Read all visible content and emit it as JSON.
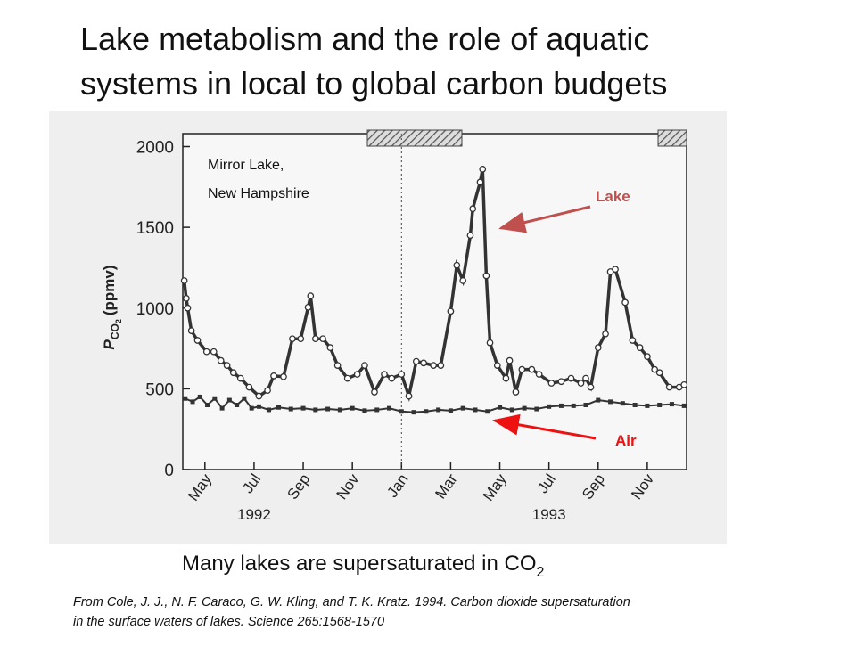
{
  "title_lines": [
    "Lake metabolism and the role of aquatic",
    "systems in local to global carbon budgets"
  ],
  "chart_data": {
    "type": "line",
    "annotation_lines": [
      "Mirror Lake,",
      "New Hampshire"
    ],
    "y_label": {
      "main": "P",
      "sub": "CO",
      "sub2": "2",
      "unit": "(ppmv)"
    },
    "year_labels": [
      {
        "value": 6,
        "label": "1992"
      },
      {
        "value": 18,
        "label": "1993"
      }
    ],
    "xlim": [
      3.1,
      23.6
    ],
    "xticks": [
      {
        "value": 4,
        "label": "May"
      },
      {
        "value": 6,
        "label": "Jul"
      },
      {
        "value": 8,
        "label": "Sep"
      },
      {
        "value": 10,
        "label": "Nov"
      },
      {
        "value": 12,
        "label": "Jan"
      },
      {
        "value": 14,
        "label": "Mar"
      },
      {
        "value": 16,
        "label": "May"
      },
      {
        "value": 18,
        "label": "Jul"
      },
      {
        "value": 20,
        "label": "Sep"
      },
      {
        "value": 22,
        "label": "Nov"
      }
    ],
    "ylim": [
      0,
      2080
    ],
    "yticks": [
      0,
      500,
      1000,
      1500,
      2000
    ],
    "series": [
      {
        "name": "Lake",
        "color": "#333333",
        "label_color": "#c0504d",
        "marker": "circle",
        "x": [
          3.16,
          3.24,
          3.3,
          3.45,
          3.7,
          4.07,
          4.36,
          4.65,
          4.9,
          5.16,
          5.45,
          5.8,
          6.2,
          6.55,
          6.8,
          7.2,
          7.56,
          7.9,
          8.2,
          8.3,
          8.5,
          8.8,
          9.1,
          9.4,
          9.8,
          10.2,
          10.5,
          10.9,
          11.3,
          11.6,
          12,
          12.3,
          12.6,
          12.9,
          13.3,
          13.6,
          14,
          14.25,
          14.5,
          14.8,
          14.9,
          15.2,
          15.3,
          15.45,
          15.6,
          15.9,
          16.25,
          16.4,
          16.65,
          16.9,
          17.3,
          17.6,
          18.1,
          18.5,
          18.9,
          19.3,
          19.5,
          19.7,
          20,
          20.3,
          20.5,
          20.7,
          21.1,
          21.4,
          21.7,
          22,
          22.3,
          22.5,
          22.9,
          23.3,
          23.5
        ],
        "values": [
          1170,
          1060,
          1000,
          860,
          800,
          730,
          730,
          675,
          645,
          600,
          565,
          510,
          455,
          490,
          580,
          575,
          810,
          810,
          1005,
          1075,
          810,
          810,
          755,
          645,
          565,
          590,
          645,
          480,
          590,
          565,
          590,
          455,
          670,
          660,
          645,
          645,
          980,
          1265,
          1170,
          1450,
          1615,
          1780,
          1860,
          1200,
          785,
          645,
          565,
          675,
          480,
          620,
          620,
          590,
          535,
          545,
          565,
          535,
          565,
          510,
          755,
          840,
          1225,
          1240,
          1035,
          800,
          755,
          700,
          620,
          600,
          510,
          510,
          525
        ]
      },
      {
        "name": "Air",
        "color": "#333333",
        "label_color": "#ee1111",
        "marker": "square",
        "x": [
          3.2,
          3.5,
          3.8,
          4.1,
          4.4,
          4.7,
          5,
          5.3,
          5.6,
          5.9,
          6.2,
          6.6,
          7,
          7.5,
          8,
          8.5,
          9,
          9.5,
          10,
          10.5,
          11,
          11.5,
          12,
          12.5,
          13,
          13.5,
          14,
          14.5,
          15,
          15.5,
          16,
          16.5,
          17,
          17.5,
          18,
          18.5,
          19,
          19.5,
          20,
          20.5,
          21,
          21.5,
          22,
          22.5,
          23,
          23.5
        ],
        "values": [
          440,
          420,
          450,
          400,
          440,
          380,
          430,
          400,
          440,
          380,
          390,
          370,
          385,
          375,
          380,
          370,
          375,
          370,
          380,
          365,
          370,
          380,
          360,
          355,
          360,
          370,
          365,
          380,
          370,
          360,
          385,
          370,
          380,
          375,
          390,
          395,
          395,
          400,
          430,
          420,
          410,
          400,
          395,
          400,
          405,
          395
        ]
      }
    ]
  },
  "subtitle": {
    "main": "Many lakes are supersaturated in CO",
    "sub": "2"
  },
  "citation_lines": [
    "From Cole, J. J., N. F. Caraco, G. W. Kling, and T. K. Kratz.  1994.  Carbon dioxide supersaturation",
    "in the surface waters of lakes.  Science 265:1568-1570"
  ]
}
